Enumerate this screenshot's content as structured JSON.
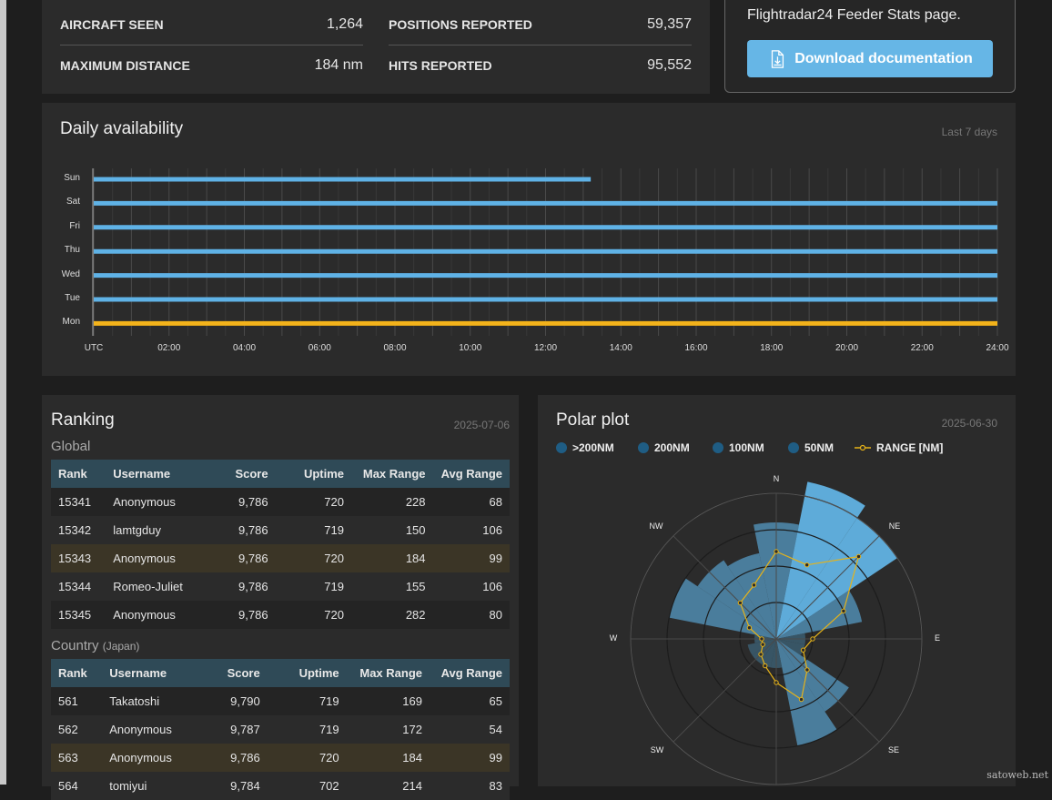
{
  "stats": [
    {
      "label": "AIRCRAFT SEEN",
      "value": "1,264"
    },
    {
      "label": "POSITIONS REPORTED",
      "value": "59,357"
    },
    {
      "label": "MAXIMUM DISTANCE",
      "value": "184 nm"
    },
    {
      "label": "HITS REPORTED",
      "value": "95,552"
    }
  ],
  "doc": {
    "text": "Flightradar24 Feeder Stats page.",
    "button": "Download documentation"
  },
  "availability": {
    "title": "Daily availability",
    "period": "Last 7 days",
    "days": [
      "Sun",
      "Sat",
      "Fri",
      "Thu",
      "Wed",
      "Tue",
      "Mon"
    ],
    "hours_end": [
      13.2,
      24,
      24,
      24,
      24,
      24,
      24
    ],
    "bar_colors": [
      "#5fb2e6",
      "#5fb2e6",
      "#5fb2e6",
      "#5fb2e6",
      "#5fb2e6",
      "#5fb2e6",
      "#f3b31b"
    ],
    "time_labels": [
      "UTC",
      "02:00",
      "04:00",
      "06:00",
      "08:00",
      "10:00",
      "12:00",
      "14:00",
      "16:00",
      "18:00",
      "20:00",
      "22:00",
      "24:00"
    ]
  },
  "ranking": {
    "title": "Ranking",
    "date": "2025-07-06",
    "global_label": "Global",
    "country_label": "Country",
    "country_name": "(Japan)",
    "columns": [
      "Rank",
      "Username",
      "Score",
      "Uptime",
      "Max Range",
      "Avg Range"
    ],
    "global": [
      [
        "15341",
        "Anonymous",
        "9,786",
        "720",
        "228",
        "68"
      ],
      [
        "15342",
        "lamtgduy",
        "9,786",
        "719",
        "150",
        "106"
      ],
      [
        "15343",
        "Anonymous",
        "9,786",
        "720",
        "184",
        "99"
      ],
      [
        "15344",
        "Romeo-Juliet",
        "9,786",
        "719",
        "155",
        "106"
      ],
      [
        "15345",
        "Anonymous",
        "9,786",
        "720",
        "282",
        "80"
      ]
    ],
    "country": [
      [
        "561",
        "Takatoshi",
        "9,790",
        "719",
        "169",
        "65"
      ],
      [
        "562",
        "Anonymous",
        "9,787",
        "719",
        "172",
        "54"
      ],
      [
        "563",
        "Anonymous",
        "9,786",
        "720",
        "184",
        "99"
      ],
      [
        "564",
        "tomiyui",
        "9,784",
        "702",
        "214",
        "83"
      ]
    ]
  },
  "polar": {
    "title": "Polar plot",
    "date": "2025-06-30",
    "legend": [
      ">200NM",
      "200NM",
      "100NM",
      "50NM",
      "RANGE [NM]"
    ],
    "directions": [
      "N",
      "NE",
      "E",
      "SE",
      "SW",
      "W",
      "NW"
    ],
    "sector_reach": [
      160,
      220,
      200,
      120,
      40,
      40,
      120,
      150,
      40,
      40,
      40,
      40,
      30,
      150,
      130,
      120
    ],
    "sector_levels": [
      2,
      3,
      3,
      2,
      1,
      1,
      2,
      2,
      1,
      1,
      1,
      1,
      1,
      2,
      2,
      2
    ],
    "range_nm": [
      120,
      110,
      160,
      100,
      50,
      40,
      60,
      90,
      60,
      40,
      30,
      20,
      20,
      40,
      70,
      80
    ],
    "colors": {
      "band4": "#64b9ec",
      "band3": "#4e86a8",
      "band2": "#3a5a6c",
      "band1": "#34444f",
      "range": "#e6b319"
    }
  },
  "watermark": "satoweb.net"
}
